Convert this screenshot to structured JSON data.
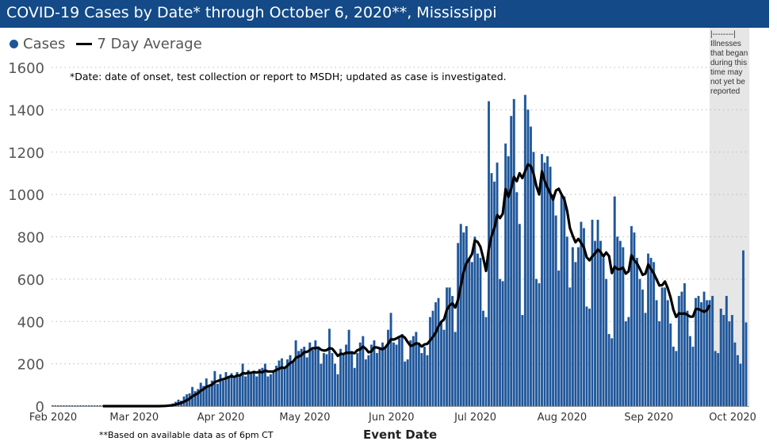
{
  "title": "COVID-19 Cases by Date* through October 6, 2020**, Mississippi",
  "legend": {
    "cases": "Cases",
    "average": "7 Day Average"
  },
  "note": "*Date: date of onset, test collection or report to MSDH; updated as case is investigated.",
  "footnote": "**Based on available data as of 6pm CT",
  "gray_note": "|--------| Illnesses that began during this time may not yet be reported",
  "colors": {
    "bars": "#1f5597",
    "line": "#000000",
    "title_bar": "#134a87",
    "shade": "#e6e6e6"
  },
  "chart_data": {
    "type": "bar",
    "title": "COVID-19 Cases by Date* through October 6, 2020**, Mississippi",
    "xlabel": "Event Date",
    "ylabel": "",
    "ylim": [
      0,
      1600
    ],
    "yticks": [
      0,
      200,
      400,
      600,
      800,
      1000,
      1200,
      1400,
      1600
    ],
    "xticks": [
      "Feb 2020",
      "Mar 2020",
      "Apr 2020",
      "May 2020",
      "Jun 2020",
      "Jul 2020",
      "Aug 2020",
      "Sep 2020",
      "Oct 2020"
    ],
    "grid": "horizontal dotted",
    "legend_position": "top-left",
    "shaded_period": [
      "2020-09-23",
      "2020-10-06"
    ],
    "series": [
      {
        "name": "Cases",
        "type": "bar",
        "values_by_month": {
          "2020-02": [
            0,
            0,
            0,
            0,
            0,
            0,
            0,
            0,
            0,
            0,
            0,
            0,
            0,
            0,
            0,
            0,
            0,
            0,
            0,
            0,
            0,
            0,
            0,
            0,
            0,
            0,
            0,
            0,
            0
          ],
          "2020-03": [
            0,
            0,
            0,
            0,
            0,
            0,
            0,
            0,
            0,
            0,
            2,
            4,
            6,
            8,
            12,
            20,
            30,
            25,
            45,
            55,
            60,
            90,
            70,
            80,
            110,
            95,
            130,
            100,
            120,
            165,
            105
          ],
          "2020-04": [
            150,
            120,
            160,
            140,
            155,
            130,
            160,
            150,
            200,
            140,
            170,
            150,
            160,
            140,
            175,
            180,
            200,
            140,
            150,
            160,
            190,
            215,
            225,
            180,
            220,
            240,
            205,
            310,
            260,
            270
          ],
          "2020-05": [
            280,
            230,
            300,
            265,
            310,
            280,
            200,
            250,
            245,
            365,
            250,
            200,
            150,
            270,
            240,
            290,
            360,
            260,
            180,
            250,
            300,
            330,
            220,
            240,
            290,
            310,
            250,
            270,
            300,
            280,
            360
          ],
          "2020-06": [
            440,
            300,
            290,
            320,
            340,
            210,
            220,
            310,
            330,
            350,
            300,
            250,
            280,
            240,
            420,
            450,
            490,
            510,
            400,
            360,
            560,
            560,
            520,
            350,
            770,
            860,
            820,
            850,
            700,
            680
          ],
          "2020-07": [
            800,
            720,
            700,
            450,
            420,
            1440,
            1100,
            1060,
            1150,
            600,
            590,
            1240,
            1180,
            1370,
            1450,
            1010,
            860,
            430,
            1470,
            1400,
            1320,
            1200,
            600,
            580,
            1190,
            1150,
            1180,
            1130,
            1000,
            900,
            640
          ],
          "2020-08": [
            1000,
            990,
            800,
            560,
            750,
            680,
            750,
            870,
            840,
            470,
            460,
            880,
            780,
            880,
            780,
            700,
            600,
            340,
            320,
            990,
            800,
            780,
            750,
            400,
            420,
            850,
            820,
            700,
            600,
            550,
            440
          ],
          "2020-09": [
            720,
            700,
            680,
            500,
            400,
            560,
            560,
            500,
            390,
            280,
            260,
            520,
            540,
            580,
            450,
            330,
            280,
            510,
            520,
            490,
            540,
            500,
            500,
            520,
            260,
            250,
            460,
            430,
            520,
            400
          ],
          "2020-10": [
            430,
            300,
            240,
            200,
            735,
            395
          ]
        }
      },
      {
        "name": "7 Day Average",
        "type": "line",
        "method": "7-day moving average of Cases",
        "ends": "2020-09-23"
      }
    ]
  }
}
